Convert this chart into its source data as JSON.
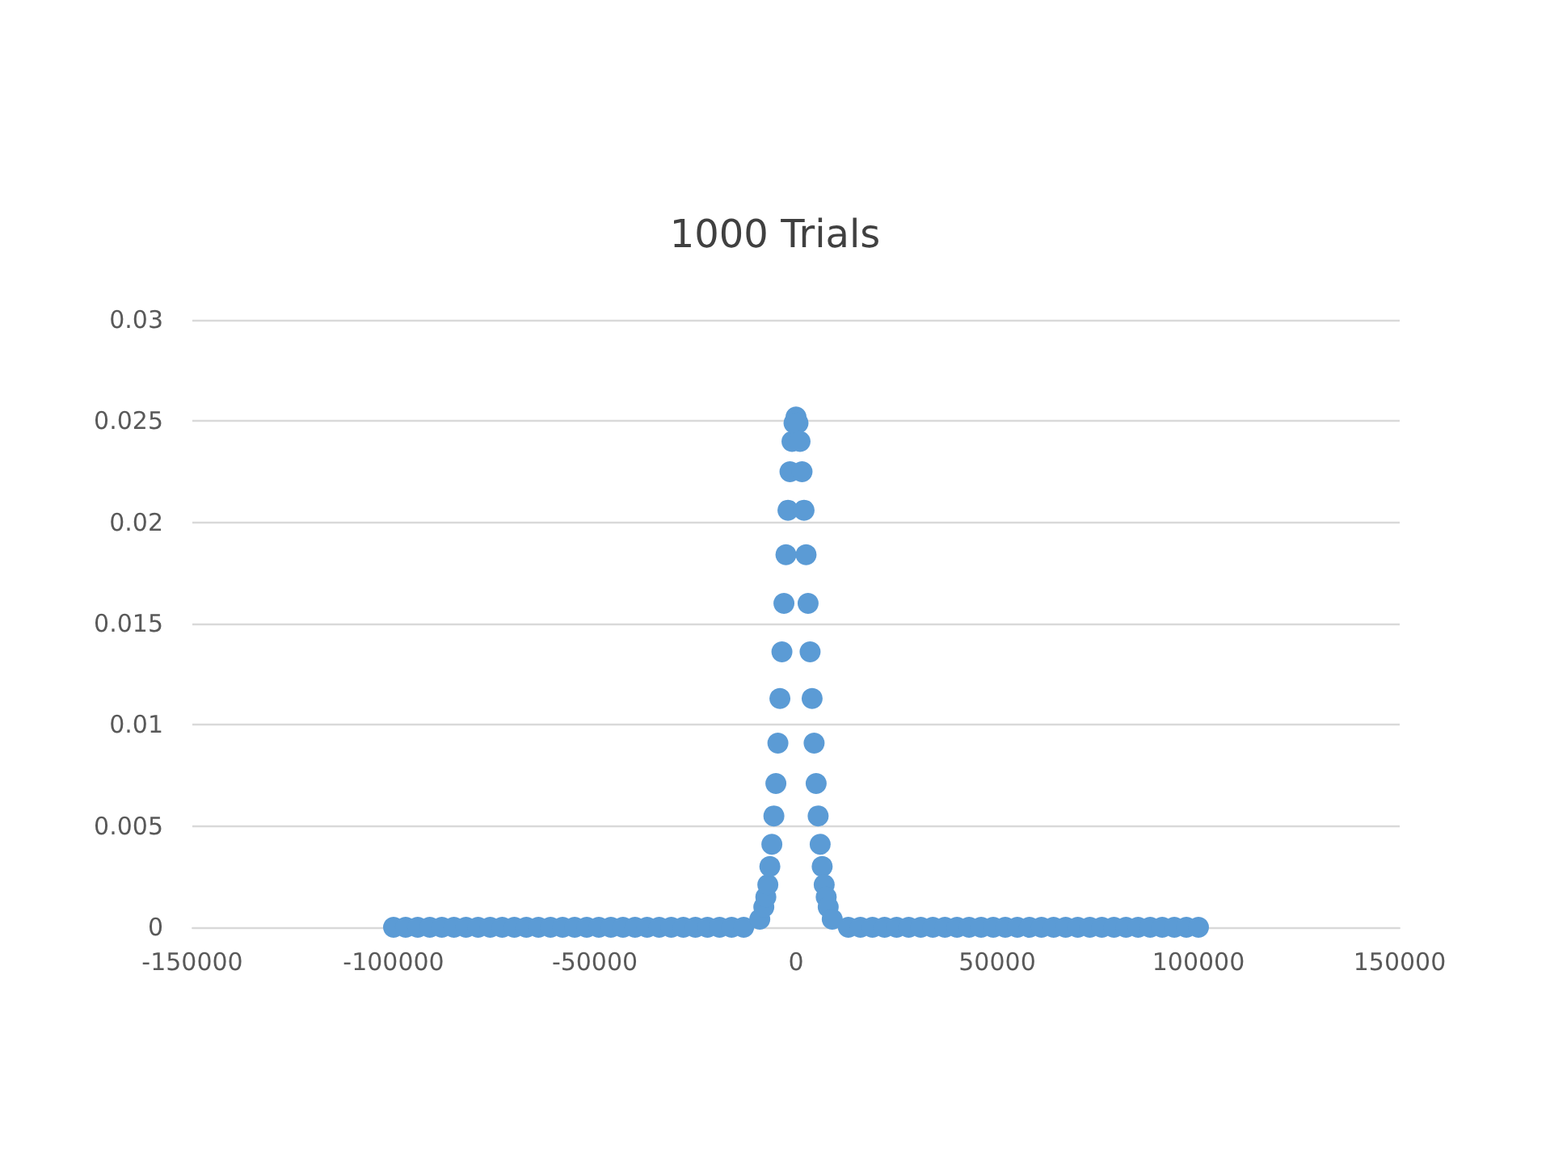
{
  "chart_data": {
    "type": "scatter",
    "title": "1000 Trials",
    "x": [
      -100000,
      -97000,
      -94000,
      -91000,
      -88000,
      -85000,
      -82000,
      -79000,
      -76000,
      -73000,
      -70000,
      -67000,
      -64000,
      -61000,
      -58000,
      -55000,
      -52000,
      -49000,
      -46000,
      -43000,
      -40000,
      -37000,
      -34000,
      -31000,
      -28000,
      -25000,
      -22000,
      -19000,
      -16000,
      -13000,
      -9000,
      -8000,
      -7500,
      -7000,
      -6500,
      -6000,
      -5500,
      -5000,
      -4500,
      -4000,
      -3500,
      -3000,
      -2500,
      -2000,
      -1500,
      -1000,
      -500,
      0,
      500,
      1000,
      1500,
      2000,
      2500,
      3000,
      3500,
      4000,
      4500,
      5000,
      5500,
      6000,
      6500,
      7000,
      7500,
      8000,
      9000,
      13000,
      16000,
      19000,
      22000,
      25000,
      28000,
      31000,
      34000,
      37000,
      40000,
      43000,
      46000,
      49000,
      52000,
      55000,
      58000,
      61000,
      64000,
      67000,
      70000,
      73000,
      76000,
      79000,
      82000,
      85000,
      88000,
      91000,
      94000,
      97000,
      100000
    ],
    "series": [
      {
        "color": "#5b9bd5",
        "values": [
          0,
          0,
          0,
          0,
          0,
          0,
          0,
          0,
          0,
          0,
          0,
          0,
          0,
          0,
          0,
          0,
          0,
          0,
          0,
          0,
          0,
          0,
          0,
          0,
          0,
          0,
          0,
          0,
          0,
          0,
          0.0004,
          0.001,
          0.0015,
          0.0021,
          0.003,
          0.0041,
          0.0055,
          0.0071,
          0.0091,
          0.0113,
          0.0136,
          0.016,
          0.0184,
          0.0206,
          0.0225,
          0.024,
          0.0249,
          0.0252,
          0.0249,
          0.024,
          0.0225,
          0.0206,
          0.0184,
          0.016,
          0.0136,
          0.0113,
          0.0091,
          0.0071,
          0.0055,
          0.0041,
          0.003,
          0.0021,
          0.0015,
          0.001,
          0.0004,
          0,
          0,
          0,
          0,
          0,
          0,
          0,
          0,
          0,
          0,
          0,
          0,
          0,
          0,
          0,
          0,
          0,
          0,
          0,
          0,
          0,
          0,
          0,
          0,
          0,
          0,
          0,
          0,
          0,
          0
        ]
      }
    ],
    "xlim": [
      -150000,
      150000
    ],
    "xticks": [
      -150000,
      -100000,
      -50000,
      0,
      50000,
      100000,
      150000
    ],
    "ylim": [
      0,
      0.03
    ],
    "yticks": [
      0,
      0.005,
      0.01,
      0.015,
      0.02,
      0.025,
      0.03
    ],
    "grid": "y",
    "marker": "circle"
  }
}
